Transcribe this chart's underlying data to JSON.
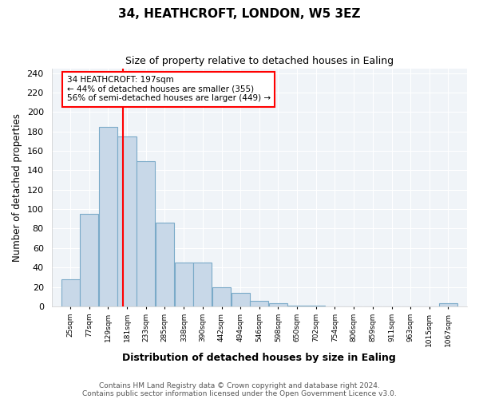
{
  "title": "34, HEATHCROFT, LONDON, W5 3EZ",
  "subtitle": "Size of property relative to detached houses in Ealing",
  "xlabel": "Distribution of detached houses by size in Ealing",
  "ylabel": "Number of detached properties",
  "bins": [
    25,
    77,
    129,
    181,
    233,
    285,
    338,
    390,
    442,
    494,
    546,
    598,
    650,
    702,
    754,
    806,
    859,
    911,
    963,
    1015,
    1067
  ],
  "counts": [
    28,
    95,
    185,
    175,
    149,
    86,
    45,
    45,
    20,
    14,
    6,
    3,
    1,
    1,
    0,
    0,
    0,
    0,
    0,
    0,
    3
  ],
  "bar_color": "#c8d8e8",
  "bar_edge_color": "#7aaac8",
  "vline_x": 197,
  "vline_color": "red",
  "annotation_text": "34 HEATHCROFT: 197sqm\n← 44% of detached houses are smaller (355)\n56% of semi-detached houses are larger (449) →",
  "annotation_box_color": "white",
  "annotation_box_edge_color": "red",
  "ylim": [
    0,
    245
  ],
  "yticks": [
    0,
    20,
    40,
    60,
    80,
    100,
    120,
    140,
    160,
    180,
    200,
    220,
    240
  ],
  "footer1": "Contains HM Land Registry data © Crown copyright and database right 2024.",
  "footer2": "Contains public sector information licensed under the Open Government Licence v3.0.",
  "bg_color": "#ffffff",
  "plot_bg_color": "#f0f4f8",
  "grid_color": "#ffffff"
}
